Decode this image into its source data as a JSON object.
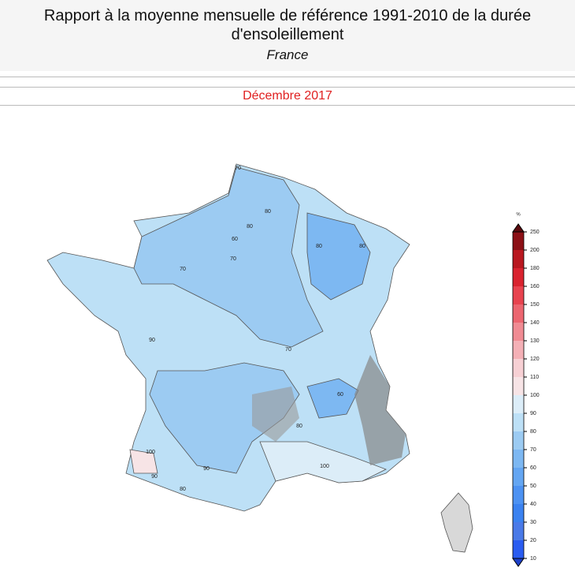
{
  "header": {
    "title": "Rapport à la moyenne mensuelle de référence 1991-2010 de la durée d'ensoleillement",
    "region": "France"
  },
  "period": "Décembre 2017",
  "map": {
    "contour_labels": [
      "70",
      "80",
      "80",
      "60",
      "70",
      "80",
      "80",
      "70",
      "90",
      "70",
      "60",
      "80",
      "100",
      "90",
      "90",
      "80",
      "100"
    ]
  },
  "legend": {
    "unit": "%",
    "ticks": [
      10,
      20,
      30,
      40,
      50,
      60,
      70,
      80,
      90,
      100,
      110,
      120,
      130,
      140,
      150,
      160,
      180,
      200,
      250
    ],
    "colors": [
      "#2a5cf0",
      "#4a7ae8",
      "#3b82f0",
      "#4d92f2",
      "#64a6f2",
      "#7db8f2",
      "#9ccbf2",
      "#bde0f6",
      "#dcedf8",
      "#f7e4e6",
      "#f7d0d4",
      "#f4b0b6",
      "#f08b93",
      "#ec6670",
      "#e8434f",
      "#d9232f",
      "#b91820",
      "#8c1016"
    ]
  }
}
